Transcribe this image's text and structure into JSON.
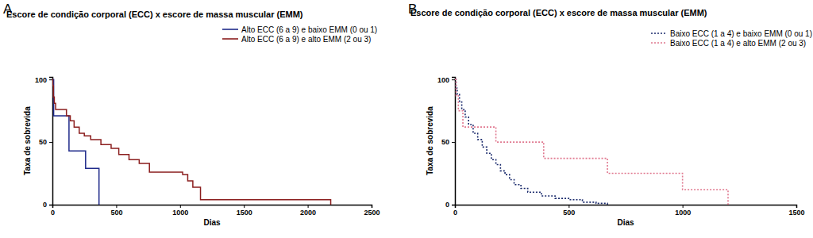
{
  "chart_data": [
    {
      "type": "line",
      "title": "Escore de condição corporal (ECC) x escore de massa muscular (EMM)",
      "annotations": [
        "A"
      ],
      "x_label": "Dias",
      "y_label": "Taxa de sobrevida",
      "xlim": [
        0,
        2500
      ],
      "xticks": [
        0,
        500,
        1000,
        1500,
        2000,
        2500
      ],
      "ylim": [
        0,
        102
      ],
      "yticks": [
        0,
        50,
        100
      ],
      "grid": false,
      "legend": "upper right",
      "series": [
        {
          "name": "Alto ECC (6 a 9) e baixo EMM (0 ou 1)",
          "color": "#1f2a8a",
          "line_style": "solid",
          "x": [
            0,
            10,
            130,
            260,
            365
          ],
          "values": [
            100,
            71,
            43,
            29,
            0
          ]
        },
        {
          "name": "Alto ECC (6 a 9) e alto EMM (2 ou 3)",
          "color": "#8b1e1e",
          "line_style": "solid",
          "x": [
            0,
            3,
            8,
            15,
            25,
            110,
            140,
            170,
            210,
            250,
            300,
            380,
            460,
            520,
            600,
            680,
            760,
            1020,
            1060,
            1100,
            1160,
            2180
          ],
          "values": [
            100,
            95,
            86,
            81,
            76,
            71,
            67,
            62,
            57,
            55,
            52,
            48,
            45,
            40,
            36,
            33,
            26,
            24,
            19,
            14,
            4,
            0
          ]
        }
      ]
    },
    {
      "type": "line",
      "title": "Escore de condição corporal (ECC) x escore de massa muscular (EMM)",
      "annotations": [
        "B"
      ],
      "x_label": "Dias",
      "y_label": "Taxa de sobrevida",
      "xlim": [
        0,
        1500
      ],
      "xticks": [
        0,
        500,
        1000,
        1500
      ],
      "ylim": [
        0,
        102
      ],
      "yticks": [
        0,
        50,
        100
      ],
      "grid": false,
      "legend": "upper right",
      "series": [
        {
          "name": "Baixo ECC (1 a 4) e baixo EMM (0 ou 1)",
          "color": "#1a2a6c",
          "line_style": "dotted",
          "x": [
            0,
            5,
            10,
            20,
            30,
            45,
            60,
            80,
            100,
            120,
            140,
            160,
            180,
            200,
            220,
            240,
            260,
            290,
            320,
            380,
            440,
            500,
            560,
            620,
            670
          ],
          "values": [
            100,
            93,
            88,
            82,
            76,
            70,
            64,
            57,
            52,
            46,
            41,
            36,
            32,
            27,
            24,
            20,
            16,
            13,
            10,
            7,
            5,
            4,
            2,
            1,
            0
          ]
        },
        {
          "name": "Baixo ECC (1 a 4) e alto EMM (2 ou 3)",
          "color": "#e0788f",
          "line_style": "dotted",
          "x": [
            0,
            5,
            15,
            35,
            180,
            390,
            670,
            1000,
            1200
          ],
          "values": [
            100,
            87,
            75,
            62,
            50,
            37,
            25,
            12,
            0
          ]
        }
      ]
    }
  ]
}
